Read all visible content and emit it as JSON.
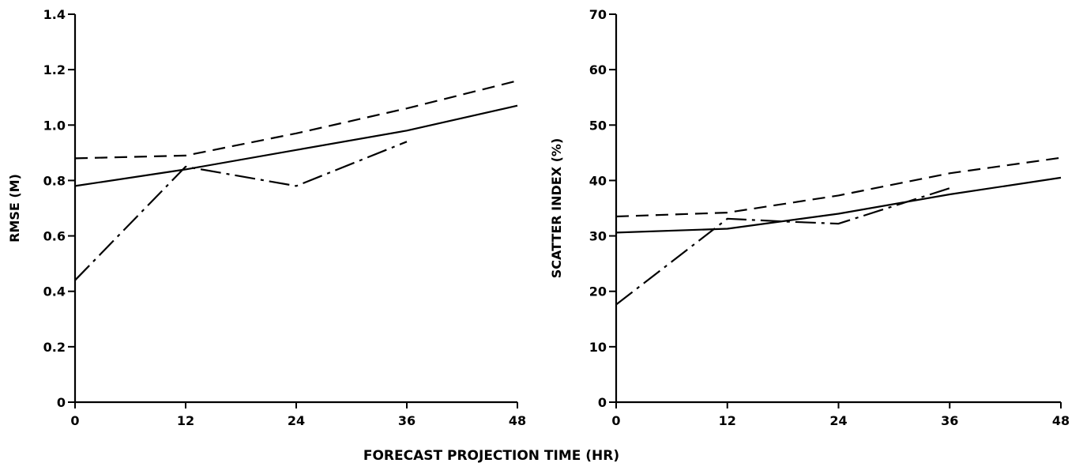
{
  "xaxis_title": "FORECAST PROJECTION TIME (HR)",
  "chart_data": [
    {
      "type": "line",
      "ylabel": "RMSE (M)",
      "xlabel": "",
      "x_ticks": [
        0,
        12,
        24,
        36,
        48
      ],
      "x_tick_labels": [
        "0",
        "12",
        "24",
        "36",
        "48"
      ],
      "y_ticks": [
        0,
        0.2,
        0.4,
        0.6,
        0.8,
        1.0,
        1.2,
        1.4
      ],
      "y_tick_labels": [
        "0",
        "0.2",
        "0.4",
        "0.6",
        "0.8",
        "1.0",
        "1.2",
        "1.4"
      ],
      "xlim": [
        0,
        48
      ],
      "ylim": [
        0,
        1.4
      ],
      "series": [
        {
          "style": "dashed",
          "x": [
            0,
            12,
            24,
            36,
            48
          ],
          "y": [
            0.88,
            0.89,
            0.97,
            1.06,
            1.16
          ]
        },
        {
          "style": "solid",
          "x": [
            0,
            12,
            24,
            36,
            48
          ],
          "y": [
            0.78,
            0.84,
            0.91,
            0.98,
            1.07
          ]
        },
        {
          "style": "dash-dot",
          "x": [
            0,
            12,
            24,
            36
          ],
          "y": [
            0.44,
            0.85,
            0.78,
            0.94
          ]
        }
      ]
    },
    {
      "type": "line",
      "ylabel": "SCATTER INDEX (%)",
      "xlabel": "",
      "x_ticks": [
        0,
        12,
        24,
        36,
        48
      ],
      "x_tick_labels": [
        "0",
        "12",
        "24",
        "36",
        "48"
      ],
      "y_ticks": [
        0,
        10,
        20,
        30,
        40,
        50,
        60,
        70
      ],
      "y_tick_labels": [
        "0",
        "10",
        "20",
        "30",
        "40",
        "50",
        "60",
        "70"
      ],
      "xlim": [
        0,
        48
      ],
      "ylim": [
        0,
        70
      ],
      "series": [
        {
          "style": "dashed",
          "x": [
            0,
            12,
            24,
            36,
            48
          ],
          "y": [
            33.5,
            34.2,
            37.3,
            41.3,
            44.1
          ]
        },
        {
          "style": "solid",
          "x": [
            0,
            12,
            24,
            36,
            48
          ],
          "y": [
            30.6,
            31.3,
            34.0,
            37.5,
            40.5
          ]
        },
        {
          "style": "dash-dot",
          "x": [
            0,
            12,
            18,
            24,
            36
          ],
          "y": [
            17.6,
            33.1,
            32.6,
            32.2,
            38.6
          ]
        }
      ]
    }
  ]
}
